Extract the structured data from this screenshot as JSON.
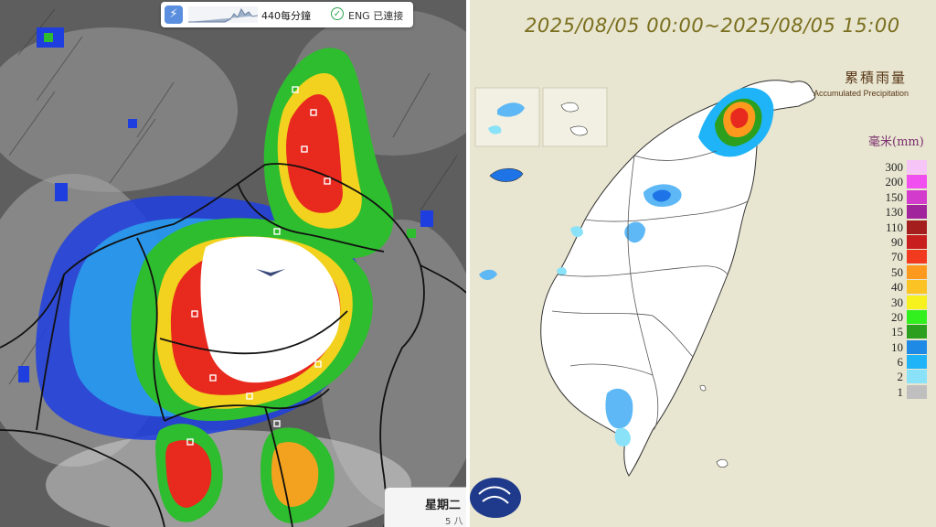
{
  "radar": {
    "rate_label": "440每分鐘",
    "connection_label": "ENG 已連接",
    "bolt_icon": "lightning-icon",
    "check_icon": "check-circle-icon",
    "day_label": "星期二",
    "day_sub": "5 八"
  },
  "rainfall_map": {
    "date_range": "2025/08/05 00:00~2025/08/05 15:00",
    "title_zh": "累積雨量",
    "title_en": "Accumulated Precipitation",
    "unit": "毫米(mm)",
    "legend": [
      {
        "label": "300",
        "color": "#f6c4f6"
      },
      {
        "label": "200",
        "color": "#f14ff0"
      },
      {
        "label": "150",
        "color": "#d23bcc"
      },
      {
        "label": "130",
        "color": "#a2249c"
      },
      {
        "label": "110",
        "color": "#a41e1e"
      },
      {
        "label": "90",
        "color": "#c81e1e"
      },
      {
        "label": "70",
        "color": "#f23a1e"
      },
      {
        "label": "50",
        "color": "#fd9a1e"
      },
      {
        "label": "40",
        "color": "#fbc323"
      },
      {
        "label": "30",
        "color": "#f7f21e"
      },
      {
        "label": "20",
        "color": "#32f01e"
      },
      {
        "label": "15",
        "color": "#2ca01e"
      },
      {
        "label": "10",
        "color": "#1e8ae6"
      },
      {
        "label": "6",
        "color": "#1eb4f7"
      },
      {
        "label": "2",
        "color": "#8ae2f9"
      },
      {
        "label": "1",
        "color": "#bfbfbf"
      }
    ]
  }
}
